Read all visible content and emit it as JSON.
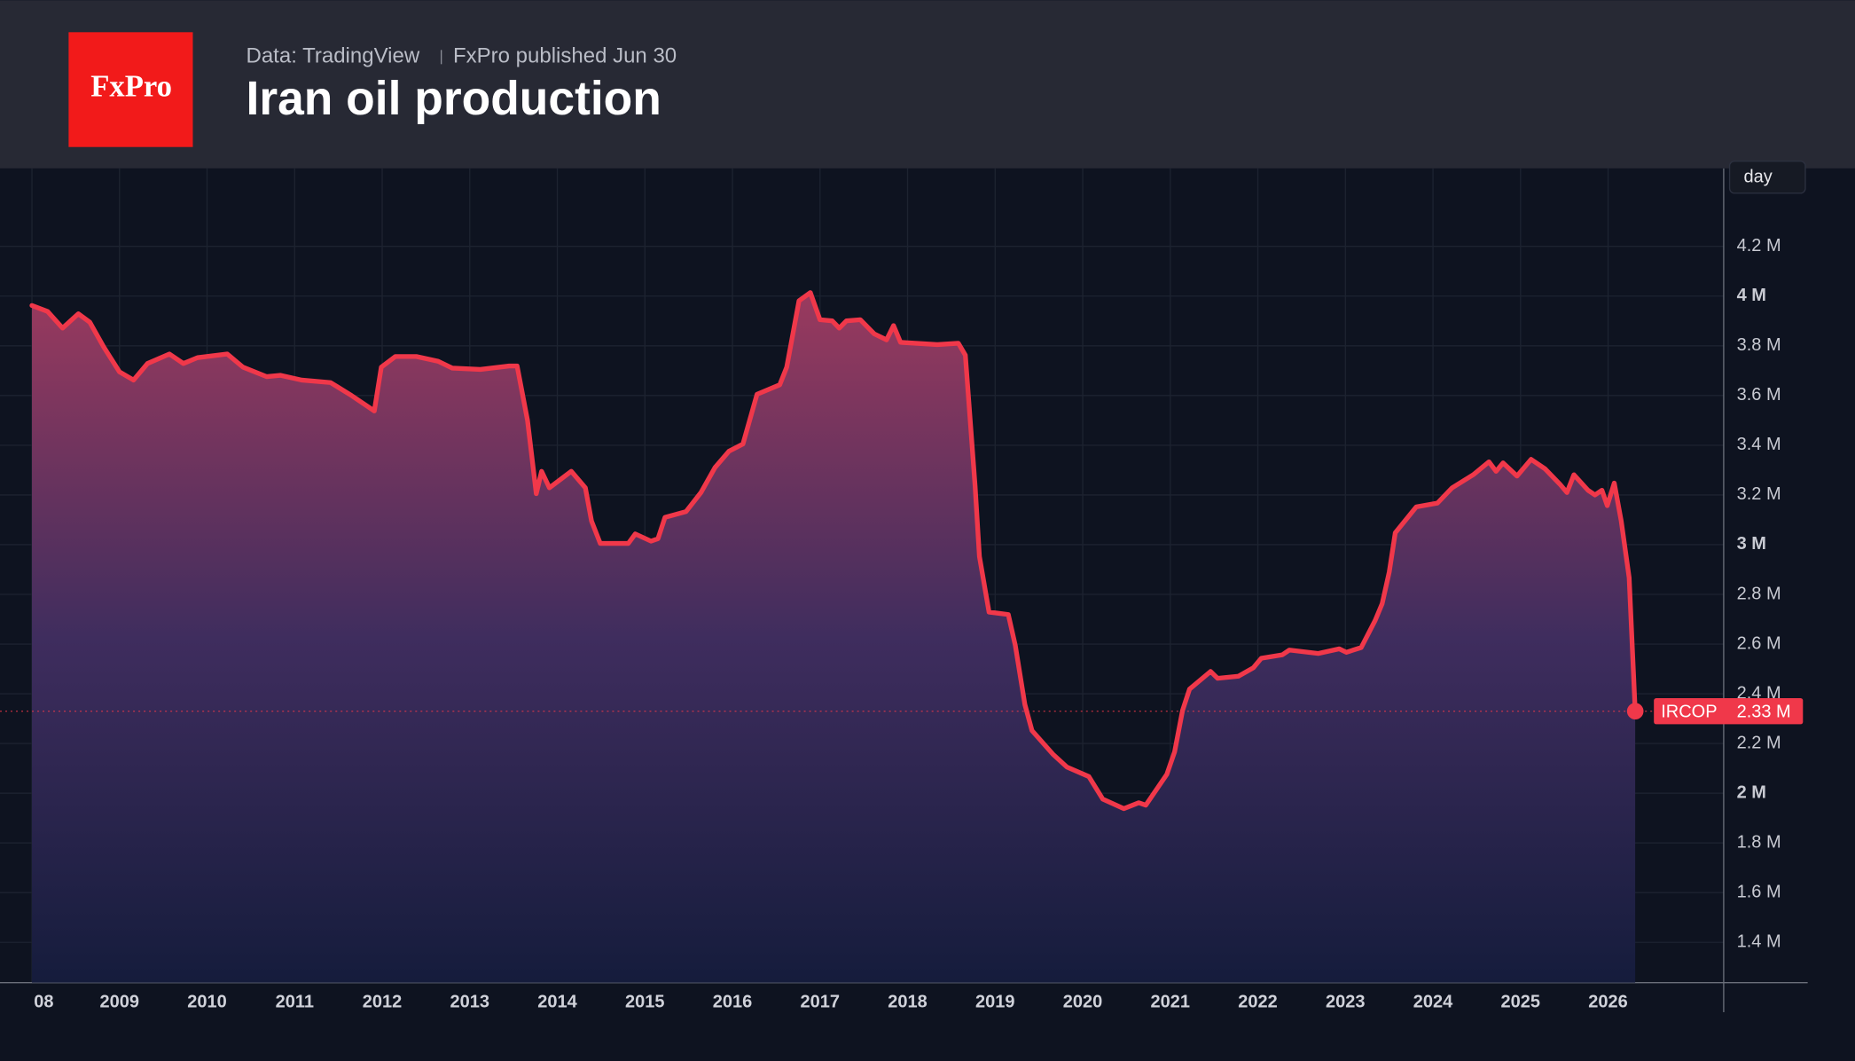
{
  "header": {
    "logo": "FxPro",
    "source": "Data: TradingView",
    "published": "FxPro published Jun 30"
  },
  "interval_button": "day",
  "chart_data": {
    "type": "line",
    "title": "Iran oil production",
    "xlim": [
      2008,
      2027.32
    ],
    "ylim": [
      1.238,
      4.514
    ],
    "xticks": [
      {
        "value": 2008,
        "label": "08"
      },
      2009,
      2010,
      2011,
      2012,
      2013,
      2014,
      2015,
      2016,
      2017,
      2018,
      2019,
      2020,
      2021,
      2022,
      2023,
      2024,
      2025,
      2026
    ],
    "yticks": [
      {
        "value": 1.4,
        "label": "1.4 M"
      },
      {
        "value": 1.6,
        "label": "1.6 M"
      },
      {
        "value": 1.8,
        "label": "1.8 M"
      },
      {
        "value": 2,
        "label": "2 M"
      },
      {
        "value": 2.2,
        "label": "2.2 M"
      },
      {
        "value": 2.4,
        "label": "2.4 M"
      },
      {
        "value": 2.6,
        "label": "2.6 M"
      },
      {
        "value": 2.8,
        "label": "2.8 M"
      },
      {
        "value": 3,
        "label": "3 M"
      },
      {
        "value": 3.2,
        "label": "3.2 M"
      },
      {
        "value": 3.4,
        "label": "3.4 M"
      },
      {
        "value": 3.6,
        "label": "3.6 M"
      },
      {
        "value": 3.8,
        "label": "3.8 M"
      },
      {
        "value": 4,
        "label": "4 M"
      },
      {
        "value": 4.2,
        "label": "4.2 M"
      }
    ],
    "grid": true,
    "series": [
      {
        "name": "IRCOP",
        "color": "#f0384a",
        "last_value_label": "2.33 M",
        "x": [
          2008.0,
          2008.18,
          2008.35,
          2008.53,
          2008.66,
          2008.82,
          2009.0,
          2009.16,
          2009.32,
          2009.57,
          2009.73,
          2009.89,
          2010.23,
          2010.41,
          2010.68,
          2010.84,
          2011.08,
          2011.41,
          2011.65,
          2011.91,
          2011.99,
          2012.15,
          2012.39,
          2012.64,
          2012.8,
          2013.12,
          2013.45,
          2013.54,
          2013.66,
          2013.76,
          2013.82,
          2013.91,
          2014.16,
          2014.32,
          2014.39,
          2014.49,
          2014.65,
          2014.81,
          2014.89,
          2015.07,
          2015.15,
          2015.23,
          2015.47,
          2015.64,
          2015.8,
          2015.96,
          2016.12,
          2016.28,
          2016.54,
          2016.62,
          2016.76,
          2016.89,
          2017.0,
          2017.14,
          2017.22,
          2017.3,
          2017.46,
          2017.62,
          2017.76,
          2017.84,
          2017.92,
          2018.34,
          2018.58,
          2018.66,
          2018.77,
          2018.82,
          2018.93,
          2019.15,
          2019.23,
          2019.34,
          2019.42,
          2019.66,
          2019.82,
          2020.07,
          2020.23,
          2020.47,
          2020.64,
          2020.72,
          2020.96,
          2021.05,
          2021.14,
          2021.22,
          2021.46,
          2021.54,
          2021.78,
          2021.95,
          2022.04,
          2022.28,
          2022.36,
          2022.69,
          2022.93,
          2023.01,
          2023.18,
          2023.34,
          2023.42,
          2023.5,
          2023.57,
          2023.81,
          2024.05,
          2024.22,
          2024.46,
          2024.64,
          2024.72,
          2024.8,
          2024.96,
          2025.12,
          2025.28,
          2025.45,
          2025.53,
          2025.61,
          2025.77,
          2025.85,
          2025.93,
          2025.99,
          2026.07,
          2026.15,
          2026.24,
          2026.31
        ],
        "values": [
          3.962,
          3.938,
          3.871,
          3.929,
          3.895,
          3.795,
          3.695,
          3.662,
          3.729,
          3.767,
          3.729,
          3.752,
          3.767,
          3.714,
          3.676,
          3.681,
          3.662,
          3.652,
          3.6,
          3.538,
          3.714,
          3.757,
          3.757,
          3.738,
          3.71,
          3.705,
          3.719,
          3.719,
          3.5,
          3.205,
          3.295,
          3.229,
          3.295,
          3.229,
          3.095,
          3.005,
          3.005,
          3.005,
          3.043,
          3.014,
          3.024,
          3.11,
          3.133,
          3.21,
          3.31,
          3.376,
          3.405,
          3.605,
          3.643,
          3.714,
          3.981,
          4.014,
          3.905,
          3.9,
          3.871,
          3.9,
          3.905,
          3.848,
          3.824,
          3.881,
          3.814,
          3.805,
          3.81,
          3.762,
          3.238,
          2.952,
          2.729,
          2.719,
          2.595,
          2.357,
          2.252,
          2.157,
          2.105,
          2.067,
          1.976,
          1.938,
          1.962,
          1.952,
          2.076,
          2.167,
          2.333,
          2.419,
          2.49,
          2.462,
          2.471,
          2.505,
          2.543,
          2.557,
          2.576,
          2.562,
          2.581,
          2.567,
          2.586,
          2.695,
          2.762,
          2.89,
          3.048,
          3.152,
          3.167,
          3.229,
          3.281,
          3.333,
          3.295,
          3.329,
          3.276,
          3.343,
          3.305,
          3.243,
          3.21,
          3.281,
          3.219,
          3.2,
          3.219,
          3.157,
          3.248,
          3.095,
          2.867,
          2.33
        ]
      }
    ]
  }
}
